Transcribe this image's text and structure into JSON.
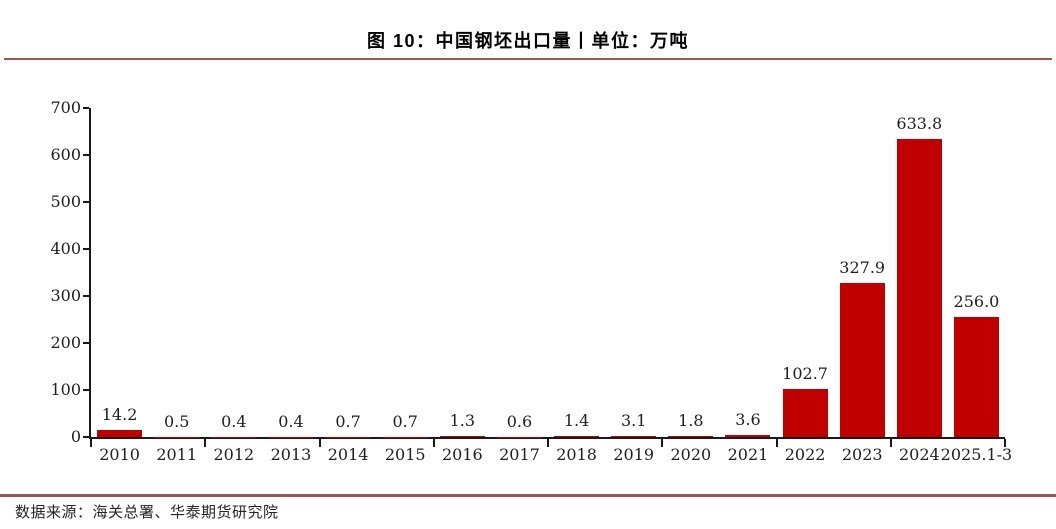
{
  "page": {
    "title": "图 10：中国钢坯出口量丨单位：万吨",
    "source": "数据来源：海关总署、华泰期货研究院"
  },
  "colors": {
    "bar": "#c00000",
    "rule": "#9e5751",
    "axis": "#1a1a1a",
    "text": "#1f1f1f"
  },
  "chart_data": {
    "type": "bar",
    "title": "图 10：中国钢坯出口量丨单位：万吨",
    "unit": "万吨",
    "categories": [
      "2010",
      "2011",
      "2012",
      "2013",
      "2014",
      "2015",
      "2016",
      "2017",
      "2018",
      "2019",
      "2020",
      "2021",
      "2022",
      "2023",
      "2024",
      "2025.1-3"
    ],
    "values": [
      14.2,
      0.5,
      0.4,
      0.4,
      0.7,
      0.7,
      1.3,
      0.6,
      1.4,
      3.1,
      1.8,
      3.6,
      102.7,
      327.9,
      633.8,
      256.0
    ],
    "data_labels": [
      "14.2",
      "0.5",
      "0.4",
      "0.4",
      "0.7",
      "0.7",
      "1.3",
      "0.6",
      "1.4",
      "3.1",
      "1.8",
      "3.6",
      "102.7",
      "327.9",
      "633.8",
      "256.0"
    ],
    "ylim": [
      0,
      700
    ],
    "yticks": [
      0,
      100,
      200,
      300,
      400,
      500,
      600,
      700
    ],
    "grid": false,
    "legend_position": "none",
    "bar_color": "#c00000",
    "xtick_every_boundaries": 2
  }
}
